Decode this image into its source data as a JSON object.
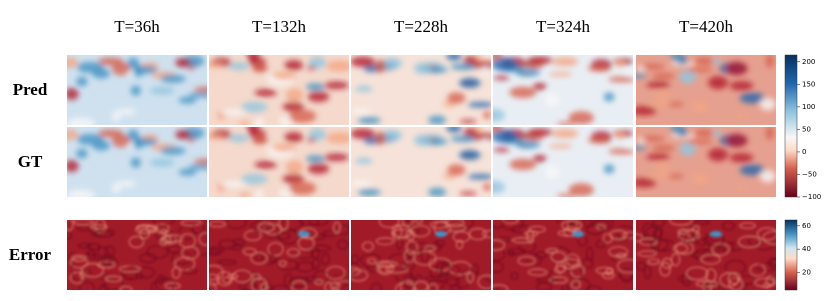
{
  "columns": [
    "T=36h",
    "T=132h",
    "T=228h",
    "T=324h",
    "T=420h"
  ],
  "rows": [
    "Pred",
    "GT",
    "Error"
  ],
  "colorbars": [
    {
      "lim": [
        -100,
        215
      ],
      "ticks": [
        200,
        150,
        100,
        50,
        0,
        {
          "value": -50,
          "label": "−50"
        },
        {
          "value": -100,
          "label": "−100"
        }
      ]
    },
    {
      "lim": [
        5,
        65
      ],
      "ticks": [
        60,
        40,
        20
      ]
    }
  ]
}
